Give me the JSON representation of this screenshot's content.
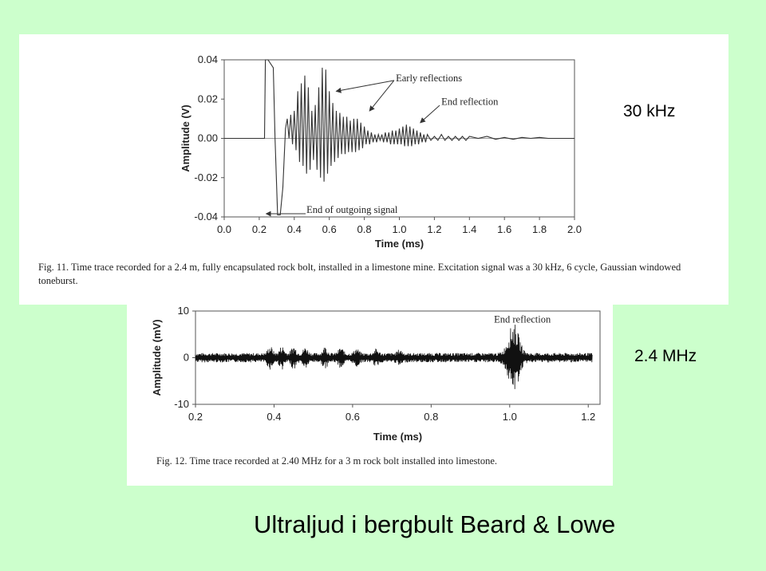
{
  "slide": {
    "title": "Ultraljud i bergbult  Beard & Lowe",
    "label_top": "30 kHz",
    "label_bottom": "2.4 MHz"
  },
  "figures": {
    "fig11": {
      "caption": "Fig. 11.  Time trace recorded for a 2.4 m, fully encapsulated rock bolt, installed in a limestone mine. Excitation signal was a 30 kHz, 6 cycle, Gaussian windowed toneburst."
    },
    "fig12": {
      "caption": "Fig. 12.  Time trace recorded at 2.40 MHz for a 3 m rock bolt installed into limestone."
    }
  },
  "chart_data": [
    {
      "type": "line",
      "title": "",
      "xlabel": "Time (ms)",
      "ylabel": "Amplitude (V)",
      "xlim": [
        0.0,
        2.0
      ],
      "ylim": [
        -0.04,
        0.04
      ],
      "x_ticks": [
        "0.0",
        "0.2",
        "0.4",
        "0.6",
        "0.8",
        "1.0",
        "1.2",
        "1.4",
        "1.6",
        "1.8",
        "2.0"
      ],
      "y_ticks": [
        "0.04",
        "0.02",
        "0.00",
        "-0.02",
        "-0.04"
      ],
      "grid": false,
      "annotations": [
        {
          "text": "Early reflections",
          "x": 0.98,
          "y": 0.029
        },
        {
          "text": "End reflection",
          "x": 1.24,
          "y": 0.017
        },
        {
          "text": "End of outgoing signal",
          "x": 0.47,
          "y": -0.038
        }
      ],
      "series": [
        {
          "points": [
            [
              0.0,
              0.0
            ],
            [
              0.23,
              0.0
            ],
            [
              0.235,
              0.04
            ],
            [
              0.25,
              0.04
            ],
            [
              0.28,
              0.036
            ],
            [
              0.29,
              0.0
            ],
            [
              0.305,
              -0.039
            ],
            [
              0.32,
              -0.039
            ],
            [
              0.335,
              -0.025
            ],
            [
              0.35,
              0.005
            ],
            [
              0.36,
              0.01
            ],
            [
              0.37,
              0.0
            ],
            [
              0.38,
              0.012
            ],
            [
              0.39,
              -0.003
            ],
            [
              0.4,
              0.014
            ],
            [
              0.41,
              -0.006
            ],
            [
              0.42,
              0.024
            ],
            [
              0.43,
              -0.012
            ],
            [
              0.44,
              0.028
            ],
            [
              0.45,
              -0.014
            ],
            [
              0.46,
              0.032
            ],
            [
              0.47,
              -0.018
            ],
            [
              0.48,
              0.026
            ],
            [
              0.49,
              -0.016
            ],
            [
              0.5,
              0.014
            ],
            [
              0.51,
              -0.011
            ],
            [
              0.52,
              0.017
            ],
            [
              0.53,
              -0.016
            ],
            [
              0.54,
              0.026
            ],
            [
              0.55,
              -0.02
            ],
            [
              0.56,
              0.036
            ],
            [
              0.57,
              -0.022
            ],
            [
              0.58,
              0.035
            ],
            [
              0.59,
              -0.018
            ],
            [
              0.6,
              0.024
            ],
            [
              0.61,
              -0.014
            ],
            [
              0.62,
              0.018
            ],
            [
              0.63,
              -0.012
            ],
            [
              0.64,
              0.014
            ],
            [
              0.65,
              -0.01
            ],
            [
              0.66,
              0.013
            ],
            [
              0.67,
              -0.008
            ],
            [
              0.68,
              0.011
            ],
            [
              0.69,
              -0.008
            ],
            [
              0.7,
              0.011
            ],
            [
              0.71,
              -0.007
            ],
            [
              0.72,
              0.009
            ],
            [
              0.73,
              -0.007
            ],
            [
              0.74,
              0.01
            ],
            [
              0.75,
              -0.007
            ],
            [
              0.76,
              0.01
            ],
            [
              0.77,
              -0.006
            ],
            [
              0.78,
              0.008
            ],
            [
              0.79,
              -0.005
            ],
            [
              0.8,
              0.006
            ],
            [
              0.81,
              -0.003
            ],
            [
              0.82,
              0.004
            ],
            [
              0.83,
              -0.003
            ],
            [
              0.84,
              0.003
            ],
            [
              0.85,
              -0.002
            ],
            [
              0.86,
              0.002
            ],
            [
              0.87,
              -0.002
            ],
            [
              0.88,
              0.002
            ],
            [
              0.89,
              -0.001
            ],
            [
              0.9,
              0.002
            ],
            [
              0.91,
              -0.002
            ],
            [
              0.92,
              0.003
            ],
            [
              0.93,
              -0.002
            ],
            [
              0.94,
              0.003
            ],
            [
              0.95,
              -0.003
            ],
            [
              0.96,
              0.004
            ],
            [
              0.97,
              -0.003
            ],
            [
              0.98,
              0.004
            ],
            [
              0.99,
              -0.003
            ],
            [
              1.0,
              0.005
            ],
            [
              1.01,
              -0.003
            ],
            [
              1.02,
              0.006
            ],
            [
              1.03,
              -0.004
            ],
            [
              1.04,
              0.007
            ],
            [
              1.05,
              -0.004
            ],
            [
              1.06,
              0.006
            ],
            [
              1.07,
              -0.004
            ],
            [
              1.08,
              0.005
            ],
            [
              1.09,
              -0.003
            ],
            [
              1.1,
              0.004
            ],
            [
              1.11,
              -0.003
            ],
            [
              1.12,
              0.003
            ],
            [
              1.13,
              -0.002
            ],
            [
              1.14,
              0.002
            ],
            [
              1.15,
              -0.002
            ],
            [
              1.16,
              0.002
            ],
            [
              1.18,
              -0.001
            ],
            [
              1.2,
              0.001
            ],
            [
              1.22,
              -0.001
            ],
            [
              1.24,
              0.002
            ],
            [
              1.26,
              -0.001
            ],
            [
              1.28,
              0.001
            ],
            [
              1.3,
              -0.001
            ],
            [
              1.32,
              0.001
            ],
            [
              1.34,
              -0.001
            ],
            [
              1.36,
              0.001
            ],
            [
              1.38,
              -0.001
            ],
            [
              1.4,
              0.001
            ],
            [
              1.45,
              0.0
            ],
            [
              1.5,
              0.001
            ],
            [
              1.55,
              -0.0005
            ],
            [
              1.6,
              0.0005
            ],
            [
              1.65,
              -0.0005
            ],
            [
              1.7,
              0.0005
            ],
            [
              1.75,
              0.0
            ],
            [
              1.8,
              0.0005
            ],
            [
              1.85,
              0.0
            ],
            [
              1.9,
              0.0
            ],
            [
              1.95,
              0.0
            ],
            [
              2.0,
              0.0
            ]
          ]
        }
      ]
    },
    {
      "type": "line",
      "title": "",
      "xlabel": "Time (ms)",
      "ylabel": "Amplitude (mV)",
      "xlim": [
        0.2,
        1.23
      ],
      "ylim": [
        -10,
        10
      ],
      "x_ticks": [
        "0.2",
        "0.4",
        "0.6",
        "0.8",
        "1.0",
        "1.2"
      ],
      "y_ticks": [
        "10",
        "0",
        "-10"
      ],
      "grid": false,
      "annotations": [
        {
          "text": "End reflection",
          "x": 0.96,
          "y": 7.5
        }
      ],
      "series": [
        {
          "envelope": {
            "baseline_noise_mV": 1.0,
            "packets": [
              {
                "center": 0.39,
                "amp": 1.6
              },
              {
                "center": 0.42,
                "amp": 1.6
              },
              {
                "center": 0.45,
                "amp": 1.6
              },
              {
                "center": 0.48,
                "amp": 1.4
              },
              {
                "center": 0.53,
                "amp": 1.5
              },
              {
                "center": 0.57,
                "amp": 1.3
              },
              {
                "center": 0.61,
                "amp": 1.1
              },
              {
                "center": 0.66,
                "amp": 1.0
              },
              {
                "center": 0.72,
                "amp": 0.9
              },
              {
                "center": 1.01,
                "amp": 6.5
              }
            ]
          }
        }
      ]
    }
  ]
}
